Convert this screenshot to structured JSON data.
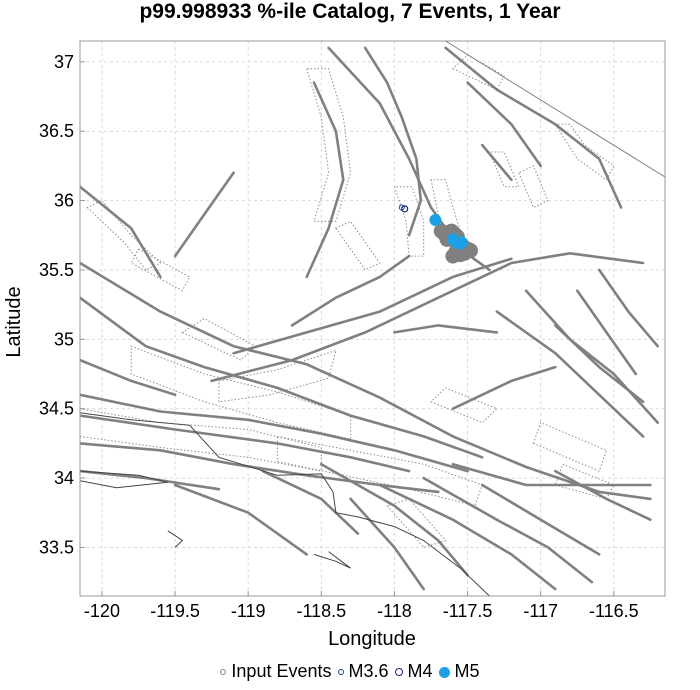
{
  "chart_data": {
    "type": "scatter",
    "title": "p99.998933 %-ile Catalog, 7 Events, 1 Year",
    "xlabel": "Longitude",
    "ylabel": "Latitude",
    "xlim": [
      -120.15,
      -116.15
    ],
    "ylim": [
      33.15,
      37.15
    ],
    "xticks": [
      -120,
      -119.5,
      -119,
      -118.5,
      -118,
      -117.5,
      -117,
      -116.5
    ],
    "yticks": [
      33.5,
      34,
      34.5,
      35,
      35.5,
      36,
      36.5,
      37
    ],
    "grid": true,
    "legend_position": "bottom",
    "legend": [
      {
        "label": "Input Events",
        "marker": "open-circle",
        "color": "#808080"
      },
      {
        "label": "M3.6",
        "marker": "open-circle",
        "color": "#1f3aa0"
      },
      {
        "label": "M4",
        "marker": "open-circle",
        "color": "#1a237e"
      },
      {
        "label": "M5",
        "marker": "filled-circle",
        "color": "#1ea0e6"
      }
    ],
    "series": [
      {
        "name": "Input Events",
        "color": "#808080",
        "points": [
          [
            -117.68,
            35.78
          ],
          [
            -117.66,
            35.76
          ],
          [
            -117.62,
            35.74
          ],
          [
            -117.6,
            35.72
          ],
          [
            -117.58,
            35.71
          ],
          [
            -117.56,
            35.69
          ],
          [
            -117.54,
            35.68
          ],
          [
            -117.52,
            35.66
          ],
          [
            -117.5,
            35.65
          ],
          [
            -117.56,
            35.65
          ],
          [
            -117.58,
            35.63
          ],
          [
            -117.55,
            35.61
          ],
          [
            -117.52,
            35.62
          ],
          [
            -117.6,
            35.6
          ],
          [
            -117.63,
            35.77
          ],
          [
            -117.61,
            35.78
          ],
          [
            -117.59,
            35.76
          ],
          [
            -117.57,
            35.74
          ],
          [
            -117.64,
            35.72
          ],
          [
            -117.48,
            35.64
          ]
        ]
      },
      {
        "name": "M3.6",
        "color": "#1f3aa0",
        "points": [
          [
            -117.95,
            35.95
          ]
        ]
      },
      {
        "name": "M4",
        "color": "#1a237e",
        "points": [
          [
            -117.93,
            35.94
          ]
        ]
      },
      {
        "name": "M5",
        "color": "#1ea0e6",
        "points": [
          [
            -117.72,
            35.86
          ],
          [
            -117.58,
            35.7
          ],
          [
            -117.55,
            35.69
          ],
          [
            -117.6,
            35.72
          ],
          [
            -117.54,
            35.7
          ]
        ]
      }
    ],
    "fault_traces": [
      [
        [
          -120.15,
          35.55
        ],
        [
          -119.6,
          35.2
        ],
        [
          -119.1,
          34.95
        ],
        [
          -118.6,
          34.82
        ],
        [
          -118.1,
          34.58
        ],
        [
          -117.6,
          34.3
        ],
        [
          -117.1,
          34.08
        ],
        [
          -116.6,
          33.9
        ],
        [
          -116.25,
          33.85
        ]
      ],
      [
        [
          -120.15,
          35.3
        ],
        [
          -119.7,
          34.95
        ],
        [
          -119.3,
          34.8
        ],
        [
          -118.8,
          34.65
        ],
        [
          -118.3,
          34.45
        ],
        [
          -117.8,
          34.3
        ],
        [
          -117.4,
          34.15
        ]
      ],
      [
        [
          -120.15,
          34.6
        ],
        [
          -119.6,
          34.48
        ],
        [
          -119.0,
          34.42
        ],
        [
          -118.5,
          34.32
        ],
        [
          -118.0,
          34.2
        ],
        [
          -117.5,
          34.05
        ]
      ],
      [
        [
          -120.15,
          34.45
        ],
        [
          -119.5,
          34.35
        ],
        [
          -118.8,
          34.25
        ],
        [
          -118.3,
          34.15
        ],
        [
          -117.9,
          34.05
        ]
      ],
      [
        [
          -120.15,
          34.25
        ],
        [
          -119.6,
          34.2
        ],
        [
          -119.1,
          34.1
        ],
        [
          -118.6,
          34.02
        ],
        [
          -118.1,
          33.95
        ],
        [
          -117.7,
          33.9
        ]
      ],
      [
        [
          -120.15,
          34.05
        ],
        [
          -119.7,
          34.0
        ],
        [
          -119.2,
          33.92
        ]
      ],
      [
        [
          -119.25,
          34.7
        ],
        [
          -118.7,
          34.85
        ],
        [
          -118.2,
          35.05
        ],
        [
          -117.7,
          35.3
        ],
        [
          -117.2,
          35.55
        ],
        [
          -116.8,
          35.62
        ],
        [
          -116.3,
          35.55
        ]
      ],
      [
        [
          -119.1,
          34.9
        ],
        [
          -118.6,
          35.05
        ],
        [
          -118.1,
          35.2
        ],
        [
          -117.6,
          35.45
        ],
        [
          -117.2,
          35.58
        ]
      ],
      [
        [
          -118.7,
          35.1
        ],
        [
          -118.4,
          35.3
        ],
        [
          -118.1,
          35.45
        ],
        [
          -117.9,
          35.6
        ]
      ],
      [
        [
          -118.45,
          37.1
        ],
        [
          -118.1,
          36.7
        ],
        [
          -117.9,
          36.3
        ],
        [
          -117.75,
          35.95
        ],
        [
          -117.55,
          35.65
        ],
        [
          -117.35,
          35.5
        ]
      ],
      [
        [
          -118.2,
          37.1
        ],
        [
          -118.05,
          36.85
        ],
        [
          -117.95,
          36.6
        ],
        [
          -117.85,
          36.3
        ],
        [
          -117.82,
          36.0
        ],
        [
          -117.9,
          35.75
        ]
      ],
      [
        [
          -117.65,
          37.1
        ],
        [
          -117.3,
          36.8
        ],
        [
          -116.9,
          36.55
        ],
        [
          -116.6,
          36.3
        ],
        [
          -116.45,
          35.95
        ]
      ],
      [
        [
          -117.5,
          36.85
        ],
        [
          -117.2,
          36.55
        ],
        [
          -117.0,
          36.25
        ]
      ],
      [
        [
          -117.4,
          36.4
        ],
        [
          -117.2,
          36.15
        ]
      ],
      [
        [
          -118.55,
          36.85
        ],
        [
          -118.4,
          36.5
        ],
        [
          -118.35,
          36.15
        ],
        [
          -118.45,
          35.8
        ],
        [
          -118.6,
          35.45
        ]
      ],
      [
        [
          -119.1,
          36.2
        ],
        [
          -119.3,
          35.9
        ],
        [
          -119.5,
          35.6
        ]
      ],
      [
        [
          -120.15,
          36.1
        ],
        [
          -119.8,
          35.8
        ],
        [
          -119.6,
          35.45
        ]
      ],
      [
        [
          -117.3,
          35.2
        ],
        [
          -116.9,
          34.9
        ],
        [
          -116.6,
          34.6
        ],
        [
          -116.3,
          34.3
        ]
      ],
      [
        [
          -117.1,
          35.35
        ],
        [
          -116.8,
          35.0
        ],
        [
          -116.5,
          34.75
        ],
        [
          -116.2,
          34.4
        ]
      ],
      [
        [
          -116.9,
          35.1
        ],
        [
          -116.6,
          34.8
        ],
        [
          -116.3,
          34.55
        ]
      ],
      [
        [
          -116.75,
          35.35
        ],
        [
          -116.55,
          35.05
        ],
        [
          -116.35,
          34.75
        ]
      ],
      [
        [
          -116.6,
          35.5
        ],
        [
          -116.4,
          35.2
        ],
        [
          -116.2,
          34.95
        ]
      ],
      [
        [
          -117.6,
          34.5
        ],
        [
          -117.2,
          34.7
        ],
        [
          -116.9,
          34.8
        ]
      ],
      [
        [
          -118.1,
          33.95
        ],
        [
          -117.6,
          33.7
        ],
        [
          -117.2,
          33.45
        ],
        [
          -116.9,
          33.2
        ]
      ],
      [
        [
          -117.8,
          34.0
        ],
        [
          -117.3,
          33.7
        ],
        [
          -116.95,
          33.5
        ],
        [
          -116.65,
          33.25
        ]
      ],
      [
        [
          -117.4,
          33.95
        ],
        [
          -117.0,
          33.7
        ],
        [
          -116.6,
          33.45
        ]
      ],
      [
        [
          -116.9,
          34.05
        ],
        [
          -116.55,
          33.85
        ],
        [
          -116.25,
          33.7
        ]
      ],
      [
        [
          -117.6,
          34.1
        ],
        [
          -117.1,
          33.95
        ],
        [
          -116.7,
          33.95
        ],
        [
          -116.25,
          33.95
        ]
      ],
      [
        [
          -118.5,
          34.1
        ],
        [
          -118.0,
          33.8
        ],
        [
          -117.7,
          33.55
        ],
        [
          -117.5,
          33.3
        ]
      ],
      [
        [
          -118.3,
          33.85
        ],
        [
          -118.0,
          33.5
        ],
        [
          -117.8,
          33.2
        ]
      ],
      [
        [
          -118.9,
          34.05
        ],
        [
          -118.5,
          33.85
        ],
        [
          -118.25,
          33.6
        ]
      ],
      [
        [
          -119.5,
          33.95
        ],
        [
          -119.0,
          33.75
        ],
        [
          -118.6,
          33.45
        ]
      ],
      [
        [
          -118.0,
          35.05
        ],
        [
          -117.7,
          35.1
        ],
        [
          -117.3,
          35.05
        ]
      ],
      [
        [
          -120.15,
          34.85
        ],
        [
          -119.8,
          34.7
        ],
        [
          -119.5,
          34.6
        ]
      ]
    ],
    "fault_surfaces": [
      [
        [
          -119.8,
          34.95
        ],
        [
          -119.3,
          34.75
        ],
        [
          -118.8,
          34.62
        ],
        [
          -118.3,
          34.45
        ],
        [
          -118.3,
          34.28
        ],
        [
          -118.8,
          34.4
        ],
        [
          -119.3,
          34.55
        ],
        [
          -119.8,
          34.75
        ]
      ],
      [
        [
          -120.15,
          34.5
        ],
        [
          -119.6,
          34.4
        ],
        [
          -119.0,
          34.35
        ],
        [
          -118.5,
          34.22
        ],
        [
          -118.5,
          34.05
        ],
        [
          -119.0,
          34.15
        ],
        [
          -119.6,
          34.22
        ],
        [
          -120.15,
          34.3
        ]
      ],
      [
        [
          -118.8,
          34.3
        ],
        [
          -118.3,
          34.2
        ],
        [
          -117.8,
          34.1
        ],
        [
          -117.4,
          33.95
        ],
        [
          -117.45,
          33.8
        ],
        [
          -117.9,
          33.92
        ],
        [
          -118.35,
          34.02
        ],
        [
          -118.8,
          34.12
        ]
      ],
      [
        [
          -119.2,
          34.7
        ],
        [
          -118.8,
          34.78
        ],
        [
          -118.4,
          34.92
        ],
        [
          -118.45,
          34.72
        ],
        [
          -118.85,
          34.6
        ],
        [
          -119.2,
          34.55
        ]
      ],
      [
        [
          -118.6,
          36.95
        ],
        [
          -118.5,
          36.6
        ],
        [
          -118.45,
          36.2
        ],
        [
          -118.55,
          35.85
        ],
        [
          -118.4,
          35.85
        ],
        [
          -118.3,
          36.2
        ],
        [
          -118.35,
          36.6
        ],
        [
          -118.45,
          36.95
        ]
      ],
      [
        [
          -118.0,
          36.1
        ],
        [
          -117.92,
          35.85
        ],
        [
          -117.9,
          35.6
        ],
        [
          -117.8,
          35.6
        ],
        [
          -117.8,
          35.85
        ],
        [
          -117.88,
          36.1
        ]
      ],
      [
        [
          -117.75,
          36.15
        ],
        [
          -117.7,
          35.9
        ],
        [
          -117.65,
          35.75
        ],
        [
          -117.55,
          35.78
        ],
        [
          -117.6,
          35.95
        ],
        [
          -117.65,
          36.15
        ]
      ],
      [
        [
          -117.35,
          36.35
        ],
        [
          -117.25,
          36.1
        ],
        [
          -117.15,
          36.1
        ],
        [
          -117.25,
          36.35
        ]
      ],
      [
        [
          -116.9,
          36.55
        ],
        [
          -116.75,
          36.3
        ],
        [
          -116.55,
          36.15
        ],
        [
          -116.5,
          36.25
        ],
        [
          -116.7,
          36.4
        ],
        [
          -116.8,
          36.55
        ]
      ],
      [
        [
          -120.1,
          35.95
        ],
        [
          -119.85,
          35.7
        ],
        [
          -119.7,
          35.5
        ],
        [
          -119.6,
          35.55
        ],
        [
          -119.8,
          35.75
        ],
        [
          -120.0,
          36.0
        ]
      ],
      [
        [
          -119.75,
          35.65
        ],
        [
          -119.4,
          35.45
        ],
        [
          -119.45,
          35.35
        ],
        [
          -119.8,
          35.55
        ]
      ],
      [
        [
          -119.45,
          35.05
        ],
        [
          -119.05,
          34.85
        ],
        [
          -118.95,
          34.95
        ],
        [
          -119.3,
          35.15
        ]
      ],
      [
        [
          -118.4,
          35.8
        ],
        [
          -118.2,
          35.5
        ],
        [
          -118.1,
          35.55
        ],
        [
          -118.3,
          35.85
        ]
      ],
      [
        [
          -117.6,
          36.95
        ],
        [
          -117.3,
          36.8
        ],
        [
          -117.25,
          36.9
        ],
        [
          -117.5,
          37.05
        ]
      ],
      [
        [
          -117.15,
          36.2
        ],
        [
          -117.05,
          35.95
        ],
        [
          -116.95,
          36.0
        ],
        [
          -117.05,
          36.25
        ]
      ],
      [
        [
          -117.75,
          34.55
        ],
        [
          -117.4,
          34.4
        ],
        [
          -117.3,
          34.5
        ],
        [
          -117.65,
          34.65
        ]
      ],
      [
        [
          -117.05,
          34.25
        ],
        [
          -116.6,
          34.05
        ],
        [
          -116.55,
          34.2
        ],
        [
          -117.0,
          34.4
        ]
      ],
      [
        [
          -118.05,
          33.8
        ],
        [
          -117.8,
          33.5
        ],
        [
          -117.65,
          33.55
        ],
        [
          -117.9,
          33.85
        ]
      ],
      [
        [
          -116.9,
          33.95
        ],
        [
          -116.55,
          33.85
        ],
        [
          -116.5,
          33.95
        ],
        [
          -116.85,
          34.1
        ]
      ]
    ],
    "coastline": [
      [
        [
          -120.15,
          34.47
        ],
        [
          -119.8,
          34.42
        ],
        [
          -119.4,
          34.38
        ],
        [
          -119.2,
          34.15
        ],
        [
          -118.8,
          34.02
        ],
        [
          -118.5,
          34.03
        ],
        [
          -118.42,
          33.9
        ],
        [
          -118.4,
          33.75
        ],
        [
          -118.25,
          33.72
        ],
        [
          -118.0,
          33.65
        ],
        [
          -117.8,
          33.55
        ],
        [
          -117.55,
          33.35
        ],
        [
          -117.35,
          33.15
        ]
      ],
      [
        [
          -120.15,
          33.98
        ],
        [
          -119.9,
          33.93
        ],
        [
          -119.55,
          33.97
        ],
        [
          -119.75,
          34.02
        ],
        [
          -120.15,
          34.05
        ]
      ],
      [
        [
          -119.55,
          33.62
        ],
        [
          -119.45,
          33.55
        ],
        [
          -119.5,
          33.5
        ]
      ],
      [
        [
          -118.55,
          33.45
        ],
        [
          -118.4,
          33.4
        ],
        [
          -118.3,
          33.35
        ],
        [
          -118.45,
          33.47
        ]
      ],
      [
        [
          -118.7,
          33.15
        ],
        [
          -118.55,
          33.05
        ]
      ]
    ],
    "sidebar_line": [
      [
        -117.65,
        37.15
      ],
      [
        -116.15,
        36.17
      ]
    ]
  }
}
